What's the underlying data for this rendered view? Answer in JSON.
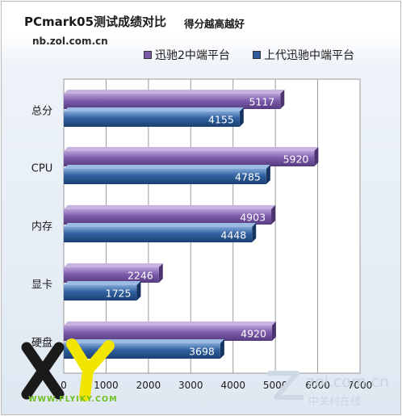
{
  "chart_data": {
    "type": "bar",
    "orientation": "horizontal",
    "title": "PCmark05测试成绩对比",
    "subtitle": "得分越高越好",
    "source": "nb.zol.com.cn",
    "categories": [
      "总分",
      "CPU",
      "内存",
      "显卡",
      "硬盘"
    ],
    "series": [
      {
        "name": "迅驰2中端平台",
        "values": [
          5117,
          5920,
          4903,
          2246,
          4920
        ],
        "color": "#7a5aa6"
      },
      {
        "name": "上代迅驰中端平台",
        "values": [
          4155,
          4785,
          4448,
          1725,
          3698
        ],
        "color": "#2f5d9c"
      }
    ],
    "xlim": [
      0,
      7000
    ],
    "xticks": [
      0,
      1000,
      2000,
      3000,
      4000,
      5000,
      6000,
      7000
    ],
    "grid": true,
    "legend_position": "top-right"
  },
  "watermarks": {
    "zol_text": "zol.com.cn",
    "zol_cn": "中关村在线",
    "flyiky_text": "WWW.FLYIKY.COM"
  }
}
